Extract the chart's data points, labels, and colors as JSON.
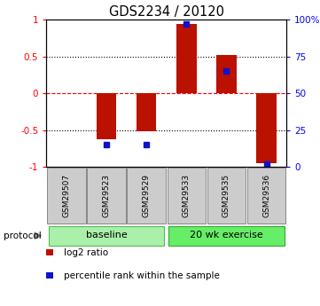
{
  "title": "GDS2234 / 20120",
  "samples": [
    "GSM29507",
    "GSM29523",
    "GSM29529",
    "GSM29533",
    "GSM29535",
    "GSM29536"
  ],
  "log2_ratios": [
    0.0,
    -0.62,
    -0.52,
    0.95,
    0.52,
    -0.95
  ],
  "percentile_ranks": [
    null,
    15.0,
    15.0,
    97.0,
    65.0,
    2.0
  ],
  "groups": [
    {
      "label": "baseline",
      "color": "#aaf0aa",
      "dark_color": "#55bb55"
    },
    {
      "label": "20 wk exercise",
      "color": "#66ee66",
      "dark_color": "#33aa33"
    }
  ],
  "bar_color": "#bb1100",
  "dot_color": "#1111cc",
  "ylim_left": [
    -1.0,
    1.0
  ],
  "ylim_right": [
    0,
    100
  ],
  "yticks_left": [
    -1.0,
    -0.5,
    0.0,
    0.5,
    1.0
  ],
  "ytick_labels_left": [
    "-1",
    "-0.5",
    "0",
    "0.5",
    "1"
  ],
  "yticks_right": [
    0,
    25,
    50,
    75,
    100
  ],
  "ytick_labels_right": [
    "0",
    "25",
    "50",
    "75",
    "100%"
  ],
  "hlines": [
    -0.5,
    0.0,
    0.5
  ],
  "hline_styles": [
    "dotted",
    "dashed",
    "dotted"
  ],
  "hline_colors": [
    "black",
    "red",
    "black"
  ],
  "protocol_label": "protocol",
  "legend_items": [
    {
      "label": "log2 ratio",
      "color": "#bb1100"
    },
    {
      "label": "percentile rank within the sample",
      "color": "#1111cc"
    }
  ]
}
